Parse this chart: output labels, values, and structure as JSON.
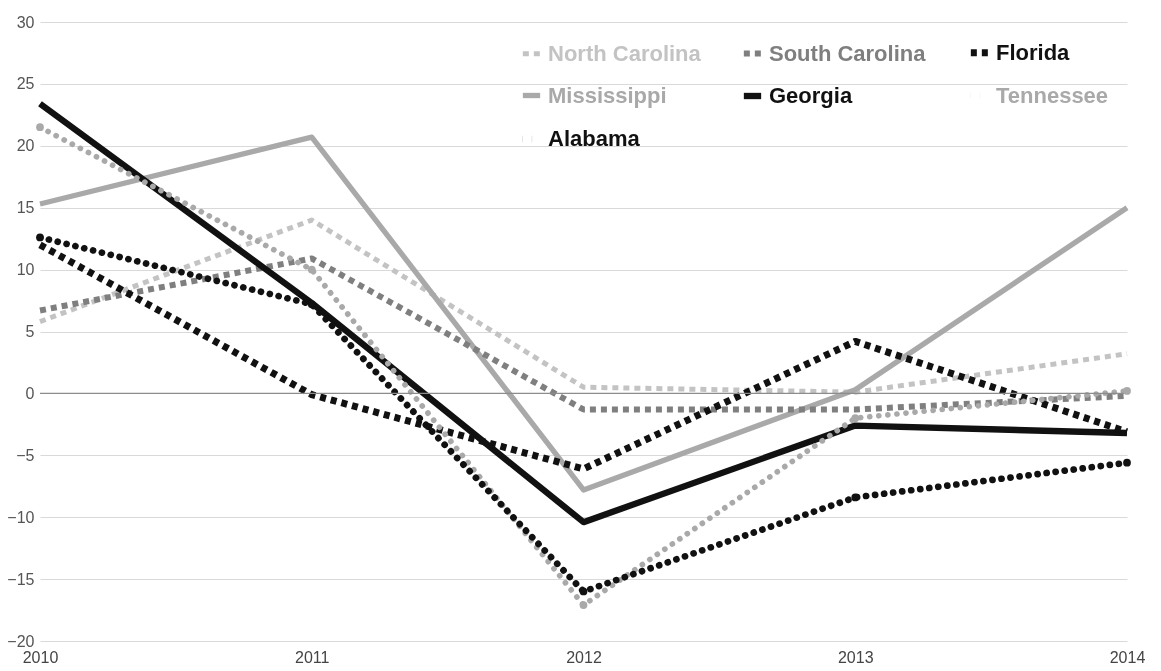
{
  "chart_data": {
    "type": "line",
    "categories": [
      "2010",
      "2011",
      "2012",
      "2013",
      "2014"
    ],
    "ylim": [
      -20,
      30
    ],
    "yticks": [
      -20,
      -15,
      -10,
      -5,
      0,
      5,
      10,
      15,
      20,
      25,
      30
    ],
    "grid": "y",
    "legend": "top right",
    "ref_lines": [
      {
        "axis": "y",
        "value": 0,
        "color": "#8c8c8c"
      }
    ],
    "series": [
      {
        "name": "North Carolina",
        "color": "#c3c3c3",
        "line_style": "dashed",
        "values": [
          5.8,
          14,
          0.5,
          0.1,
          3.2
        ]
      },
      {
        "name": "Mississippi",
        "color": "#a9a9a9",
        "line_style": "solid",
        "values": [
          15.3,
          20.7,
          -7.8,
          0.3,
          15
        ]
      },
      {
        "name": "Tennessee",
        "color": "#a9a9a9",
        "line_style": "dotted",
        "marker": "circle",
        "values": [
          21.5,
          10,
          -17.1,
          -2,
          0.2
        ]
      },
      {
        "name": "South Carolina",
        "color": "#7f7f7f",
        "line_style": "dashed",
        "values": [
          6.7,
          10.9,
          -1.3,
          -1.3,
          -0.2
        ]
      },
      {
        "name": "Georgia",
        "color": "#111111",
        "line_style": "solid",
        "values": [
          23.4,
          7.3,
          -10.4,
          -2.6,
          -3.2
        ]
      },
      {
        "name": "Alabama",
        "color": "#111111",
        "line_style": "dotted",
        "marker": "circle",
        "values": [
          12.6,
          7.2,
          -16,
          -8.4,
          -5.6
        ]
      },
      {
        "name": "Florida",
        "color": "#111111",
        "line_style": "dashed",
        "values": [
          12,
          -0.1,
          -6.1,
          4.2,
          -3.1
        ]
      }
    ]
  }
}
